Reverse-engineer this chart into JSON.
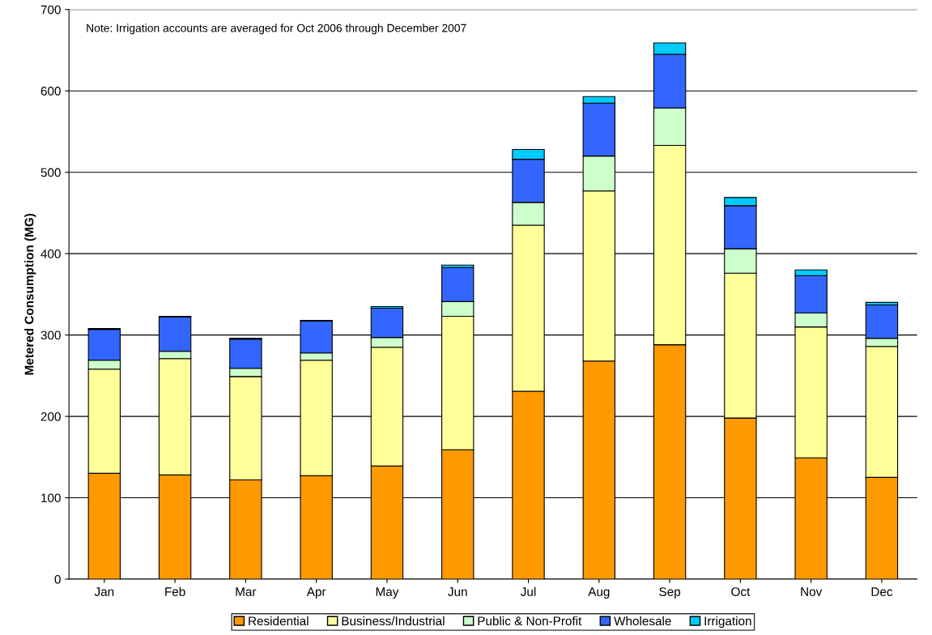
{
  "chart_data": {
    "type": "bar",
    "stacked": true,
    "ylabel": "Metered Consumption (MG)",
    "categories": [
      "Jan",
      "Feb",
      "Mar",
      "Apr",
      "May",
      "Jun",
      "Jul",
      "Aug",
      "Sep",
      "Oct",
      "Nov",
      "Dec"
    ],
    "series": [
      {
        "name": "Residential",
        "color": "#ff9900",
        "values": [
          130,
          128,
          122,
          127,
          139,
          159,
          231,
          268,
          288,
          198,
          149,
          125
        ]
      },
      {
        "name": "Business/Industrial",
        "color": "#ffff99",
        "values": [
          128,
          143,
          127,
          142,
          146,
          164,
          204,
          209,
          245,
          178,
          161,
          161
        ]
      },
      {
        "name": "Public & Non-Profit",
        "color": "#ccffcc",
        "values": [
          11,
          9,
          10,
          9,
          12,
          18,
          28,
          43,
          46,
          30,
          17,
          10
        ]
      },
      {
        "name": "Wholesale",
        "color": "#3366ff",
        "values": [
          38,
          42,
          36,
          39,
          36,
          42,
          53,
          65,
          66,
          53,
          46,
          41
        ]
      },
      {
        "name": "Irrigation",
        "color": "#00ccff",
        "values": [
          1,
          1,
          1,
          1,
          2,
          3,
          12,
          8,
          14,
          10,
          7,
          3
        ]
      }
    ],
    "ylim": [
      0,
      700
    ],
    "yticks": [
      0,
      100,
      200,
      300,
      400,
      500,
      600,
      700
    ],
    "grid": "y",
    "legend": "bottom",
    "annotations": [
      "Note: Irrigation accounts are averaged for Oct 2006 through December 2007"
    ]
  }
}
